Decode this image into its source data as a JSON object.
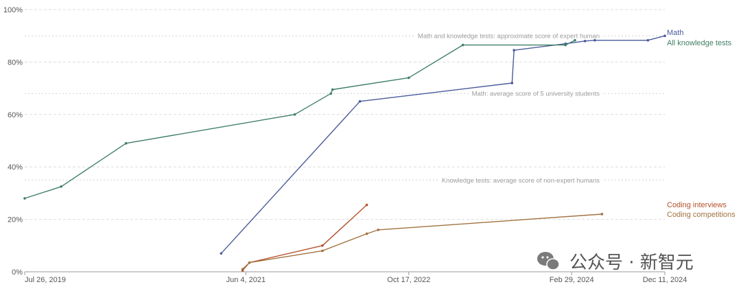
{
  "chart_data": {
    "type": "line",
    "ylim": [
      0,
      100
    ],
    "y_ticks": [
      "0%",
      "20%",
      "40%",
      "60%",
      "80%",
      "100%"
    ],
    "x_ticks": [
      {
        "date": "2019-07-26",
        "label": "Jul 26, 2019"
      },
      {
        "date": "2021-06-04",
        "label": "Jun 4, 2021"
      },
      {
        "date": "2022-10-17",
        "label": "Oct 17, 2022"
      },
      {
        "date": "2024-02-29",
        "label": "Feb 29, 2024"
      },
      {
        "date": "2024-12-11",
        "label": "Dec 11, 2024"
      }
    ],
    "grid": "horizontal dashed",
    "legend_placement": "right, at line ends",
    "series": [
      {
        "name": "Math",
        "color": "#4a5a9a",
        "points": [
          {
            "x": "2021-03-20",
            "y": 7
          },
          {
            "x": "2022-05-20",
            "y": 65
          },
          {
            "x": "2023-08-30",
            "y": 72
          },
          {
            "x": "2023-09-05",
            "y": 84.5
          },
          {
            "x": "2024-02-10",
            "y": 87
          },
          {
            "x": "2024-04-10",
            "y": 88
          },
          {
            "x": "2024-05-10",
            "y": 88.3
          },
          {
            "x": "2024-10-20",
            "y": 88.3
          },
          {
            "x": "2024-12-11",
            "y": 90
          }
        ]
      },
      {
        "name": "All knowledge tests",
        "color": "#3f7f64",
        "points": [
          {
            "x": "2019-07-26",
            "y": 28
          },
          {
            "x": "2019-11-15",
            "y": 32.5
          },
          {
            "x": "2020-06-01",
            "y": 49
          },
          {
            "x": "2021-11-01",
            "y": 60
          },
          {
            "x": "2022-02-20",
            "y": 68
          },
          {
            "x": "2022-02-25",
            "y": 69.5
          },
          {
            "x": "2022-10-17",
            "y": 74
          },
          {
            "x": "2023-04-01",
            "y": 86.5
          },
          {
            "x": "2024-02-10",
            "y": 86.5
          },
          {
            "x": "2024-03-10",
            "y": 88.3
          }
        ]
      },
      {
        "name": "Coding interviews",
        "color": "#b5502a",
        "points": [
          {
            "x": "2021-05-25",
            "y": 0.5
          },
          {
            "x": "2021-06-15",
            "y": 3.5
          },
          {
            "x": "2022-01-25",
            "y": 10
          },
          {
            "x": "2022-06-10",
            "y": 25.5
          }
        ]
      },
      {
        "name": "Coding competitions",
        "color": "#a0713f",
        "points": [
          {
            "x": "2021-05-25",
            "y": 1
          },
          {
            "x": "2021-06-15",
            "y": 3.5
          },
          {
            "x": "2022-01-25",
            "y": 8
          },
          {
            "x": "2022-06-10",
            "y": 14.5
          },
          {
            "x": "2022-07-15",
            "y": 16
          },
          {
            "x": "2024-06-01",
            "y": 22
          }
        ]
      }
    ],
    "reference_lines": [
      {
        "y": 90,
        "label": "Math and knowledge tests: approximate score of expert human"
      },
      {
        "y": 68,
        "label": "Math: average score of 5 university students"
      },
      {
        "y": 35,
        "label": "Knowledge tests: average score of non-expert humans"
      }
    ]
  },
  "watermark": {
    "text": "公众号 · 新智元",
    "icon": "wechat-icon"
  }
}
